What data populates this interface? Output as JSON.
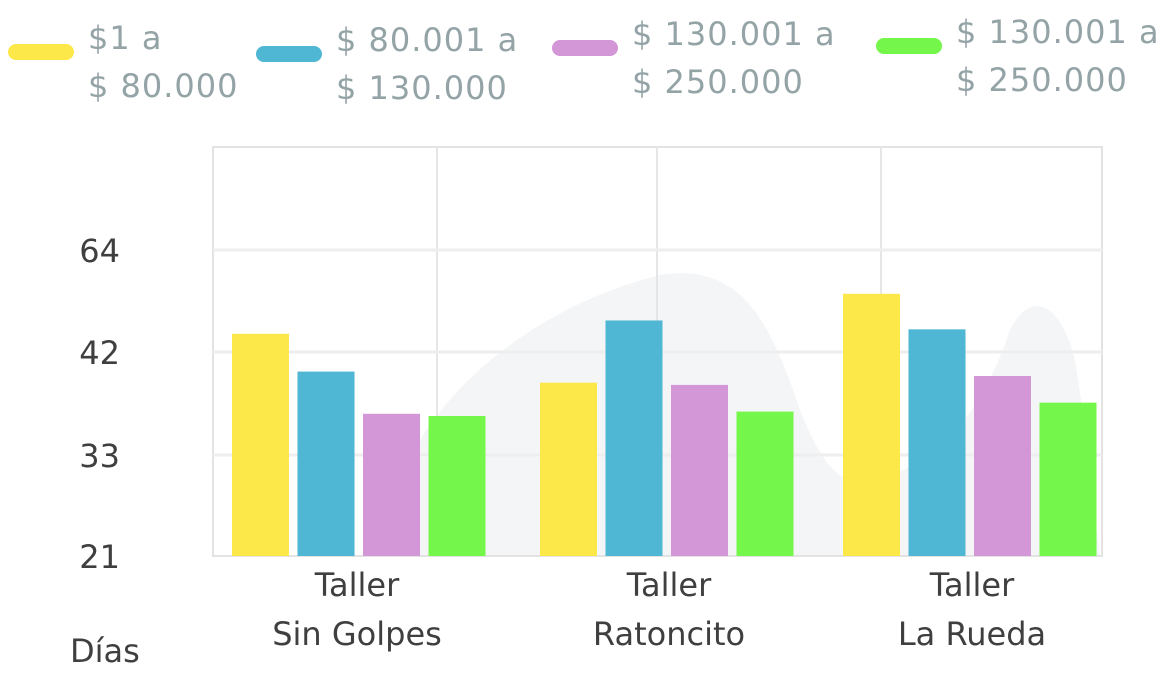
{
  "chart_data": {
    "type": "bar",
    "title": "",
    "xlabel": "",
    "ylabel": "Días",
    "categories": [
      [
        "Taller",
        "Sin Golpes"
      ],
      [
        "Taller",
        "Ratoncito"
      ],
      [
        "Taller",
        "La Rueda"
      ]
    ],
    "y_ticks": [
      "21",
      "33",
      "42",
      "64"
    ],
    "series": [
      {
        "name_lines": [
          "$1 a",
          "$ 80.000"
        ],
        "color": "#fde84a",
        "values": [
          1,
          0.78,
          1.18
        ]
      },
      {
        "name_lines": [
          "$ 80.001 a",
          "$ 130.000"
        ],
        "color": "#4fb6d3",
        "values": [
          0.83,
          1.06,
          1.02
        ]
      },
      {
        "name_lines": [
          "$ 130.001 a",
          "$ 250.000"
        ],
        "color": "#d396d6",
        "values": [
          0.64,
          0.77,
          0.81
        ]
      },
      {
        "name_lines": [
          "$ 130.001 a",
          "$ 250.000"
        ],
        "color": "#74f74a",
        "values": [
          0.63,
          0.65,
          0.69
        ]
      }
    ],
    "grid": true,
    "legend_position": "top"
  }
}
